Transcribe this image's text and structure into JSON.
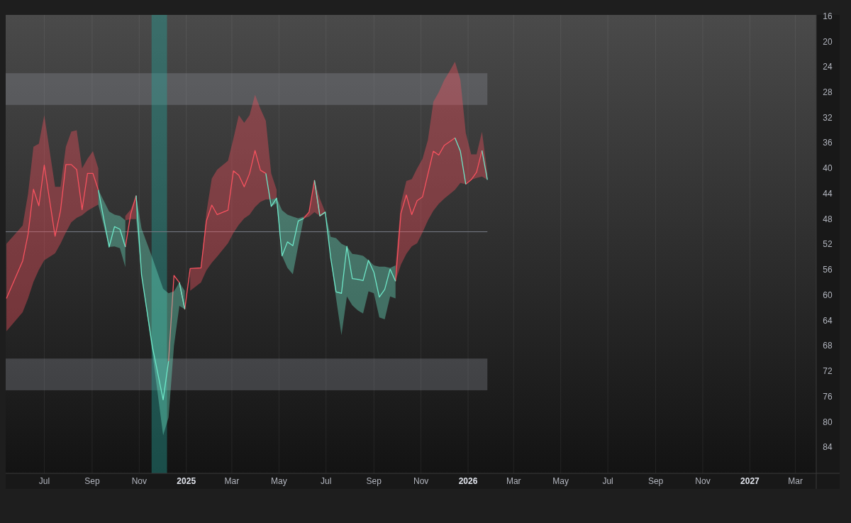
{
  "chart_data": {
    "type": "line",
    "x": [
      "2024-05-13",
      "2024-06-03",
      "2024-06-10",
      "2024-06-17",
      "2024-06-24",
      "2024-07-01",
      "2024-07-15",
      "2024-07-22",
      "2024-07-29",
      "2024-08-05",
      "2024-08-12",
      "2024-08-19",
      "2024-08-26",
      "2024-09-02",
      "2024-09-09",
      "2024-09-23",
      "2024-09-30",
      "2024-10-07",
      "2024-10-14",
      "2024-10-21",
      "2024-10-28",
      "2024-11-04",
      "2024-11-18",
      "2024-12-02",
      "2024-12-09",
      "2024-12-16",
      "2024-12-23",
      "2024-12-30",
      "2025-01-06",
      "2025-01-20",
      "2025-01-27",
      "2025-02-03",
      "2025-02-10",
      "2025-02-24",
      "2025-03-03",
      "2025-03-10",
      "2025-03-17",
      "2025-03-24",
      "2025-03-31",
      "2025-04-07",
      "2025-04-14",
      "2025-04-21",
      "2025-04-28",
      "2025-05-05",
      "2025-05-12",
      "2025-05-19",
      "2025-05-26",
      "2025-06-02",
      "2025-06-09",
      "2025-06-16",
      "2025-06-23",
      "2025-06-30",
      "2025-07-07",
      "2025-07-14",
      "2025-07-21",
      "2025-07-28",
      "2025-08-04",
      "2025-08-11",
      "2025-08-18",
      "2025-08-25",
      "2025-09-01",
      "2025-09-08",
      "2025-09-15",
      "2025-09-22",
      "2025-09-29",
      "2025-10-06",
      "2025-10-13",
      "2025-10-20",
      "2025-10-27",
      "2025-11-03",
      "2025-11-10",
      "2025-11-17",
      "2025-11-24",
      "2025-12-01",
      "2025-12-08",
      "2025-12-15",
      "2025-12-22",
      "2025-12-29",
      "2026-01-05",
      "2026-01-12",
      "2026-01-19",
      "2026-01-26"
    ],
    "series": [
      {
        "color": "#f7525f",
        "values": [
          60.5,
          54.6,
          50.4,
          43.3,
          45.9,
          39.5,
          50.7,
          46.7,
          39.4,
          39.4,
          40.2,
          46.5,
          40.8,
          40.8,
          43.4,
          null,
          null,
          null,
          52.4,
          47.2,
          44.3,
          null,
          null,
          null,
          70.4,
          56.9,
          58.0,
          62.2,
          55.8,
          55.7,
          48.3,
          45.8,
          47.3,
          46.6,
          40.4,
          41.1,
          42.9,
          40.8,
          37.2,
          40.3,
          40.8,
          null,
          null,
          null,
          null,
          null,
          null,
          47.9,
          46.9,
          41.9,
          47.5,
          46.9,
          null,
          null,
          null,
          null,
          null,
          null,
          null,
          null,
          null,
          null,
          null,
          null,
          57.8,
          47.1,
          44.2,
          47.3,
          45.1,
          44.5,
          40.9,
          37.3,
          37.9,
          36.4,
          35.8,
          35.2,
          null,
          42.5,
          41.8,
          40.6,
          37.2,
          null
        ],
        "lower": [
          51.9,
          49.0,
          44.0,
          36.6,
          36.1,
          31.6,
          42.9,
          42.9,
          36.6,
          34.2,
          34.0,
          40.0,
          38.5,
          37.3,
          40.0,
          null,
          null,
          null,
          47.5,
          46.5,
          44.3,
          null,
          null,
          null,
          null,
          null,
          null,
          null,
          55.8,
          55.7,
          47.0,
          41.6,
          40.2,
          38.8,
          35.3,
          31.6,
          32.8,
          31.6,
          28.4,
          30.6,
          32.5,
          40.8,
          43.4,
          null,
          null,
          null,
          null,
          47.6,
          46.9,
          41.9,
          44.8,
          46.9,
          null,
          null,
          null,
          null,
          null,
          null,
          null,
          null,
          null,
          null,
          null,
          null,
          55.3,
          45.5,
          42.0,
          41.7,
          40.0,
          38.5,
          35.5,
          29.5,
          28.0,
          26.1,
          24.7,
          23.2,
          26.0,
          34.4,
          37.8,
          37.8,
          34.2,
          40.7
        ],
        "upper": [
          65.7,
          62.7,
          60.5,
          57.9,
          56.0,
          54.5,
          53.4,
          51.9,
          50.1,
          48.5,
          47.8,
          47.4,
          46.7,
          46.2,
          45.7,
          null,
          null,
          null,
          48.2,
          48.0,
          48.0,
          null,
          null,
          null,
          null,
          null,
          null,
          null,
          59.3,
          58.0,
          56.1,
          54.9,
          53.9,
          51.8,
          50.2,
          48.9,
          47.9,
          47.3,
          46.1,
          45.3,
          44.9,
          44.9,
          44.7,
          null,
          null,
          null,
          null,
          47.9,
          47.6,
          46.9,
          47.5,
          47.0,
          null,
          null,
          null,
          null,
          null,
          null,
          null,
          null,
          null,
          null,
          null,
          null,
          57.8,
          55.2,
          53.5,
          52.3,
          51.8,
          50.1,
          48.2,
          46.7,
          45.6,
          44.8,
          44.1,
          43.4,
          42.3,
          42.5,
          41.8,
          41.5,
          41.3,
          41.8
        ]
      },
      {
        "color": "#6ee7c8",
        "values": [
          null,
          null,
          null,
          null,
          null,
          null,
          null,
          null,
          null,
          null,
          null,
          null,
          null,
          null,
          43.4,
          52.4,
          49.2,
          49.6,
          52.4,
          null,
          44.3,
          56.8,
          68.1,
          76.5,
          70.4,
          null,
          58.0,
          62.2,
          null,
          null,
          null,
          null,
          null,
          null,
          null,
          null,
          null,
          null,
          null,
          null,
          40.8,
          46.0,
          44.7,
          53.8,
          51.6,
          52.2,
          48.3,
          47.9,
          null,
          41.9,
          47.5,
          46.9,
          54.1,
          59.5,
          59.7,
          52.3,
          57.4,
          57.5,
          57.7,
          54.5,
          56.4,
          60.3,
          59.1,
          55.9,
          57.8,
          null,
          null,
          null,
          null,
          null,
          null,
          null,
          null,
          null,
          null,
          35.2,
          37.3,
          42.5,
          null,
          null,
          37.2,
          41.8
        ],
        "lower": [
          null,
          null,
          null,
          null,
          null,
          null,
          null,
          null,
          null,
          null,
          null,
          null,
          null,
          null,
          43.4,
          46.8,
          47.3,
          47.5,
          48.2,
          null,
          44.3,
          49.5,
          54.1,
          59.0,
          59.7,
          59.4,
          58.0,
          59.3,
          null,
          null,
          null,
          null,
          null,
          null,
          null,
          null,
          null,
          null,
          null,
          null,
          null,
          44.9,
          44.7,
          46.6,
          47.3,
          47.6,
          47.9,
          47.6,
          null,
          null,
          null,
          46.9,
          50.8,
          51.0,
          51.9,
          52.3,
          53.5,
          53.6,
          53.8,
          54.5,
          55.3,
          55.5,
          55.5,
          55.7,
          55.3,
          null,
          null,
          null,
          null,
          null,
          null,
          null,
          null,
          null,
          null,
          null,
          null,
          null,
          null,
          null,
          null,
          null
        ],
        "upper": [
          null,
          null,
          null,
          null,
          null,
          null,
          null,
          null,
          null,
          null,
          null,
          null,
          null,
          null,
          45.7,
          52.4,
          52.3,
          52.6,
          55.6,
          null,
          48.0,
          56.8,
          69.1,
          82.1,
          79.3,
          68.0,
          61.7,
          62.2,
          null,
          null,
          null,
          null,
          null,
          null,
          null,
          null,
          null,
          null,
          null,
          null,
          null,
          46.0,
          45.5,
          53.8,
          55.7,
          56.7,
          52.2,
          47.9,
          null,
          null,
          null,
          47.2,
          54.1,
          60.5,
          66.3,
          60.2,
          61.6,
          62.4,
          62.9,
          59.4,
          59.7,
          63.5,
          63.8,
          60.2,
          60.5,
          null,
          null,
          null,
          null,
          null,
          null,
          null,
          null,
          null,
          null,
          null,
          null,
          null,
          null,
          null,
          null,
          null
        ]
      }
    ],
    "xlim": [
      "2024-05-12",
      "2027-03-28"
    ],
    "ylim": [
      88.1,
      15.8
    ],
    "xticks": [
      {
        "value": "2024-07-01",
        "label": "Jul"
      },
      {
        "value": "2024-09-01",
        "label": "Sep"
      },
      {
        "value": "2024-11-01",
        "label": "Nov"
      },
      {
        "value": "2025-01-01",
        "label": "2025"
      },
      {
        "value": "2025-03-01",
        "label": "Mar"
      },
      {
        "value": "2025-05-01",
        "label": "May"
      },
      {
        "value": "2025-07-01",
        "label": "Jul"
      },
      {
        "value": "2025-09-01",
        "label": "Sep"
      },
      {
        "value": "2025-11-01",
        "label": "Nov"
      },
      {
        "value": "2026-01-01",
        "label": "2026"
      },
      {
        "value": "2026-03-01",
        "label": "Mar"
      },
      {
        "value": "2026-05-01",
        "label": "May"
      },
      {
        "value": "2026-07-01",
        "label": "Jul"
      },
      {
        "value": "2026-09-01",
        "label": "Sep"
      },
      {
        "value": "2026-11-01",
        "label": "Nov"
      },
      {
        "value": "2027-01-01",
        "label": "2027"
      },
      {
        "value": "2027-03-01",
        "label": "Mar"
      }
    ],
    "yticks": [
      16,
      20,
      24,
      28,
      32,
      36,
      40,
      44,
      48,
      52,
      56,
      60,
      64,
      68,
      72,
      76,
      80,
      84
    ],
    "grid": "x",
    "ref_lines": [
      {
        "axis": "y",
        "value": 50,
        "color": "#787b86"
      }
    ],
    "bands": [
      {
        "axis": "y",
        "from": 25,
        "to": 30,
        "color": "#9598a1"
      },
      {
        "axis": "y",
        "from": 70,
        "to": 75,
        "color": "#9598a1"
      },
      {
        "axis": "x",
        "from": "2024-11-17",
        "to": "2024-12-07",
        "color": "#26a69a"
      }
    ]
  }
}
